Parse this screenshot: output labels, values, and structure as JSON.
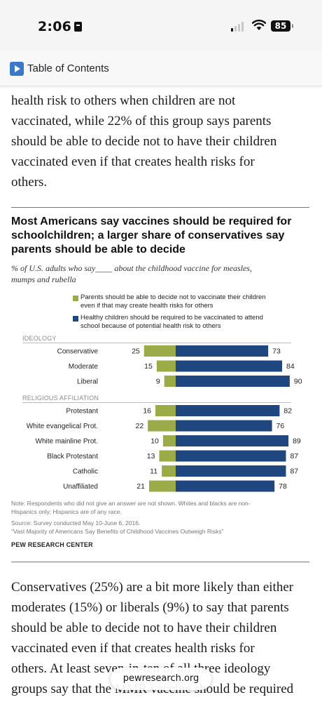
{
  "status_bar": {
    "time": "2:06",
    "battery": "85"
  },
  "toc": {
    "label": "Table of Contents"
  },
  "article": {
    "para1_lines": [
      "health risk to others when children are not",
      "vaccinated, while 22% of this group says parents",
      "should be able to decide not to have their children",
      "vaccinated even if that creates health risks for",
      "others."
    ],
    "para2_lines": [
      "Conservatives (25%) are a bit more likely than either",
      "moderates (15%) or liberals (9%) to say that parents",
      "should be able to decide not to have their children",
      "vaccinated even if that creates health risks for",
      "others. At least seven-in-ten of all three ideology",
      "groups say that the MMR vaccine should be required"
    ]
  },
  "figure": {
    "title_lines": [
      "Most Americans say vaccines should be required for",
      "schoolchildren; a larger share of conservatives say",
      "parents should be able to decide"
    ],
    "subtitle_lines": [
      "% of U.S. adults who say____ about the childhood vaccine for measles,",
      "mumps and rubella"
    ],
    "legend": [
      {
        "lines": [
          "Parents should be able to decide not to vaccinate their children",
          "even if that may create health risks for others"
        ],
        "color": "#9aab48"
      },
      {
        "lines": [
          "Healthy children should be required to be vaccinated to attend",
          "school because of potential health risk to others"
        ],
        "color": "#1f467f"
      }
    ],
    "note_lines": [
      "Note: Respondents who did not give an answer are not shown. Whites and blacks are non-",
      "Hispanics only; Hispanics are of any race."
    ],
    "source": "Source: Survey conducted May 10-June 6, 2016.",
    "report": "“Vast Majority of Americans Say Benefits of Childhood Vaccines Outweigh Risks”",
    "brand": "PEW RESEARCH CENTER"
  },
  "chart_data": {
    "type": "bar",
    "orientation": "horizontal-diverging",
    "series": [
      {
        "name": "Parents should be able to decide not to vaccinate their children even if that may create health risks for others",
        "color": "#9aab48"
      },
      {
        "name": "Healthy children should be required to be vaccinated to attend school because of potential health risk to others",
        "color": "#1f467f"
      }
    ],
    "groups": [
      {
        "label": "IDEOLOGY",
        "rows": [
          {
            "label": "Conservative",
            "decide": 25,
            "required": 73
          },
          {
            "label": "Moderate",
            "decide": 15,
            "required": 84
          },
          {
            "label": "Liberal",
            "decide": 9,
            "required": 90
          }
        ]
      },
      {
        "label": "RELIGIOUS AFFILIATION",
        "rows": [
          {
            "label": "Protestant",
            "decide": 16,
            "required": 82
          },
          {
            "label": "White evangelical Prot.",
            "decide": 22,
            "required": 76
          },
          {
            "label": "White mainline Prot.",
            "decide": 10,
            "required": 89
          },
          {
            "label": "Black Protestant",
            "decide": 13,
            "required": 87
          },
          {
            "label": "Catholic",
            "decide": 11,
            "required": 87
          },
          {
            "label": "Unaffiliated",
            "decide": 21,
            "required": 78
          }
        ]
      }
    ],
    "x_unit": "%"
  },
  "url_bar": {
    "domain": "pewresearch.org"
  }
}
